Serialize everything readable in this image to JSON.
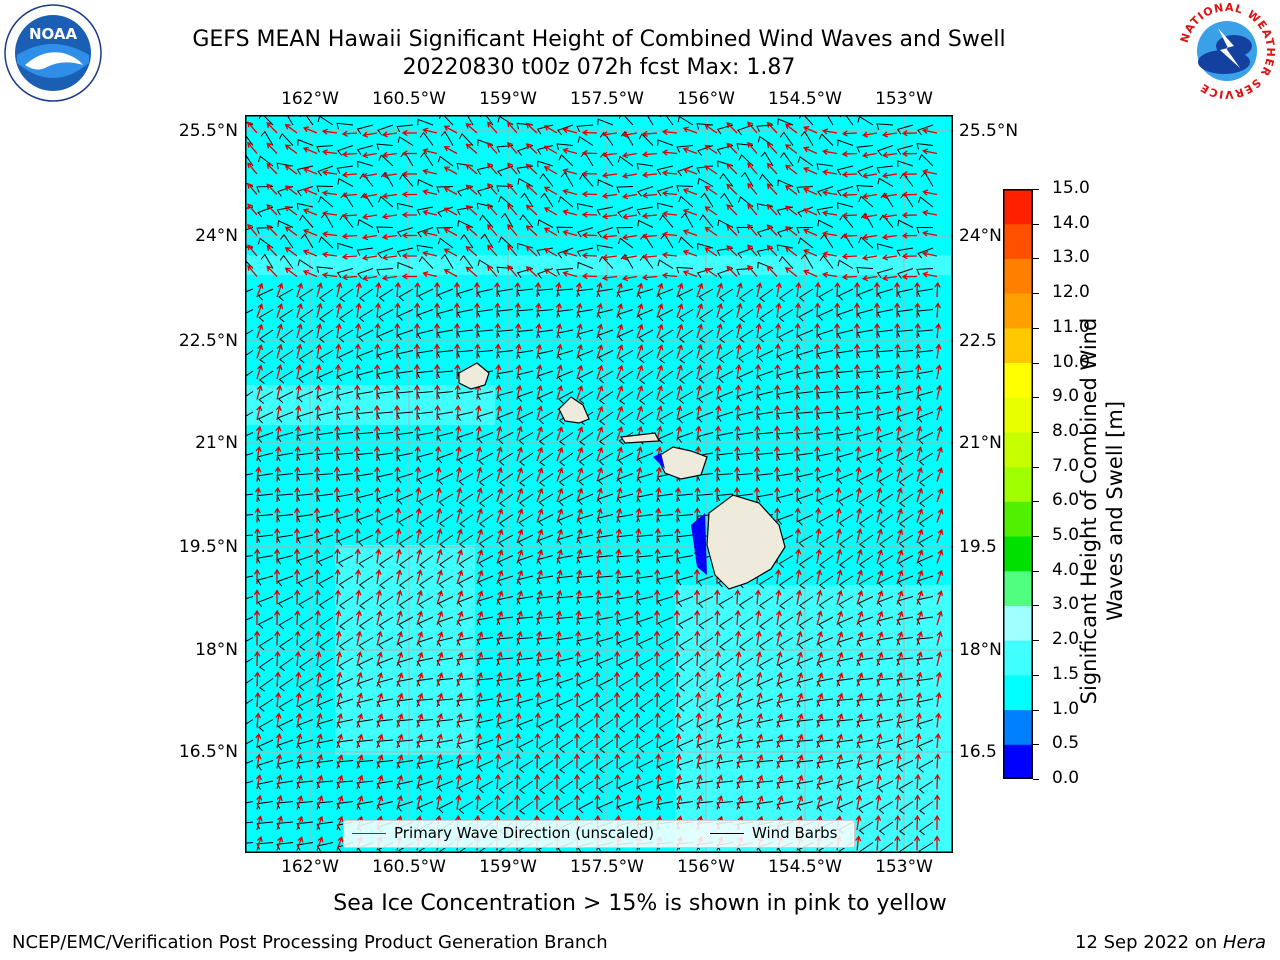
{
  "header": {
    "title_line1": "GEFS MEAN Hawaii Significant Height of Combined Wind Waves and Swell",
    "title_line2": "20220830 t00z 072h fcst   Max: 1.87"
  },
  "logos": {
    "noaa_text": "NOAA",
    "noaa_ring": "NATIONAL OCEANIC AND ATMOSPHERIC ADMINISTRATION · U.S. DEPARTMENT OF COMMERCE",
    "nws_ring": "NATIONAL WEATHER SERVICE"
  },
  "map": {
    "lon_ticks": [
      "162°W",
      "160.5°W",
      "159°W",
      "157.5°W",
      "156°W",
      "154.5°W",
      "153°W"
    ],
    "lat_ticks": [
      "25.5°N",
      "24°N",
      "22.5°N",
      "21°N",
      "19.5°N",
      "18°N",
      "16.5°N"
    ],
    "lat_ticks_right": [
      "25.5°N",
      "24°N",
      "22.5",
      "21°N",
      "19.5",
      "18°N",
      "16.5"
    ],
    "legend": {
      "wave_dir": "Primary Wave Direction (unscaled)",
      "wind_barbs": "Wind Barbs"
    },
    "colors": {
      "ocean": "#00ffff",
      "land": "#efebdc",
      "wave_arrow": "#e00000",
      "barb": "#000000"
    }
  },
  "colorbar": {
    "label": "Significant Height of Combined Wind Waves and Swell [m]",
    "ticks": [
      "0.0",
      "0.5",
      "1.0",
      "1.5",
      "2.0",
      "3.0",
      "4.0",
      "5.0",
      "6.0",
      "7.0",
      "8.0",
      "9.0",
      "10.0",
      "11.0",
      "12.0",
      "13.0",
      "14.0",
      "15.0"
    ],
    "colors": [
      "#0000ff",
      "#0080ff",
      "#00ffff",
      "#40ffff",
      "#a0ffff",
      "#50ff80",
      "#00e000",
      "#50f000",
      "#a0ff00",
      "#c8ff00",
      "#e8ff00",
      "#ffff00",
      "#ffc800",
      "#ffa000",
      "#ff8000",
      "#ff5000",
      "#ff2000"
    ]
  },
  "footer": {
    "note": "Sea Ice Concentration > 15% is shown in pink to yellow",
    "left": "NCEP/EMC/Verification Post Processing Product Generation Branch",
    "right_prefix": "12 Sep 2022 on ",
    "right_host": "Hera"
  }
}
